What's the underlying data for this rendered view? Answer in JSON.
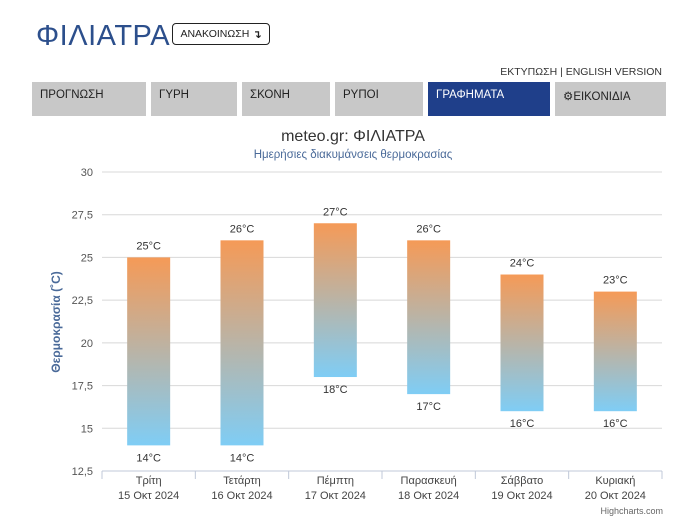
{
  "header": {
    "city": "ΦΙΛΙΑΤΡΑ",
    "announcement_label": "ΑΝΑΚΟΙΝΩΣΗ",
    "announcement_icon": "arrow-down-icon",
    "print_link": "ΕΚΤΥΠΩΣΗ",
    "separator": " | ",
    "english_link": "ENGLISH VERSION"
  },
  "tabs": [
    {
      "label": "ΠΡΟΓΝΩΣΗ",
      "active": false
    },
    {
      "label": "ΓΥΡΗ",
      "active": false
    },
    {
      "label": "ΣΚΟΝΗ",
      "active": false
    },
    {
      "label": "ΡΥΠΟΙ",
      "active": false
    },
    {
      "label": "ΓΡΑΦΗΜΑΤΑ",
      "active": true
    },
    {
      "label": "ΕΙΚΟΝΙΔΙΑ",
      "active": false,
      "icon": "gear-icon"
    }
  ],
  "colors": {
    "brand": "#2c4f8c",
    "active_tab": "#1f3f8a",
    "tab_bg": "#c8c8c8",
    "bar_top": "#f59a57",
    "bar_bottom": "#7fcdf5"
  },
  "chart_data": {
    "type": "columnrange",
    "title": "meteo.gr: ΦΙΛΙΑΤΡΑ",
    "subtitle": "Ημερήσιες διακυμάνσεις θερμοκρασίας",
    "ylabel": "Θερμοκρασία (˚C)",
    "ylim": [
      12.5,
      30
    ],
    "yticks": [
      "12,5",
      "15",
      "17,5",
      "20",
      "22,5",
      "25",
      "27,5",
      "30"
    ],
    "ytick_values": [
      12.5,
      15,
      17.5,
      20,
      22.5,
      25,
      27.5,
      30
    ],
    "grid": true,
    "categories": [
      {
        "day": "Τρίτη",
        "date": "15 Οκτ 2024"
      },
      {
        "day": "Τετάρτη",
        "date": "16 Οκτ 2024"
      },
      {
        "day": "Πέμπτη",
        "date": "17 Οκτ 2024"
      },
      {
        "day": "Παρασκευή",
        "date": "18 Οκτ 2024"
      },
      {
        "day": "Σάββατο",
        "date": "19 Οκτ 2024"
      },
      {
        "day": "Κυριακή",
        "date": "20 Οκτ 2024"
      }
    ],
    "low": [
      14,
      14,
      18,
      17,
      16,
      16
    ],
    "high": [
      25,
      26,
      27,
      26,
      24,
      23
    ],
    "low_labels": [
      "14°C",
      "14°C",
      "18°C",
      "17°C",
      "16°C",
      "16°C"
    ],
    "high_labels": [
      "25°C",
      "26°C",
      "27°C",
      "26°C",
      "24°C",
      "23°C"
    ],
    "credit": "Highcharts.com"
  }
}
